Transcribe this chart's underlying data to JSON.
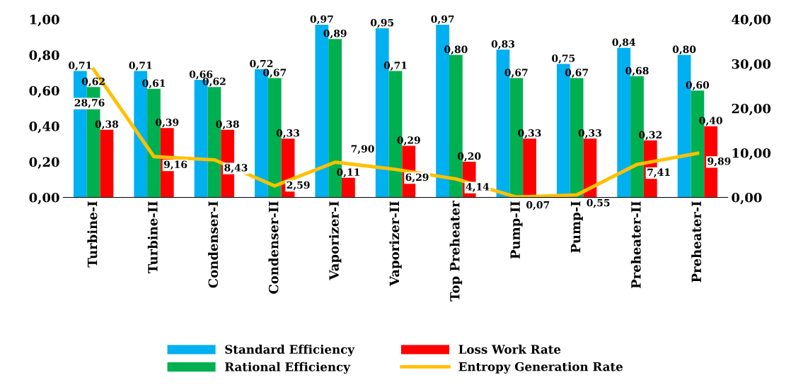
{
  "chart_data": {
    "type": "bar",
    "categories": [
      "Turbine-I",
      "Turbine-II",
      "Condenser-I",
      "Condenser-II",
      "Vaporizer-I",
      "Vaporizer-II",
      "Top Preheater",
      "Pump-II",
      "Pump-I",
      "Preheater-II",
      "Preheater-I"
    ],
    "series": [
      {
        "name": "Standard Efficiency",
        "color": "#00b0f0",
        "values": [
          0.71,
          0.71,
          0.66,
          0.72,
          0.97,
          0.95,
          0.97,
          0.83,
          0.75,
          0.84,
          0.8
        ],
        "value_labels": [
          "0,71",
          "0,71",
          "0,66",
          "0,72",
          "0,97",
          "0,95",
          "0,97",
          "0,83",
          "0,75",
          "0,84",
          "0,80"
        ]
      },
      {
        "name": "Rational Efficiency",
        "color": "#00b050",
        "values": [
          0.62,
          0.61,
          0.62,
          0.67,
          0.89,
          0.71,
          0.8,
          0.67,
          0.67,
          0.68,
          0.6
        ],
        "value_labels": [
          "0,62",
          "0,61",
          "0,62",
          "0,67",
          "0,89",
          "0,71",
          "0,80",
          "0,67",
          "0,67",
          "0,68",
          "0,60"
        ]
      },
      {
        "name": "Loss Work Rate",
        "color": "#ff0000",
        "values": [
          0.38,
          0.39,
          0.38,
          0.33,
          0.11,
          0.29,
          0.2,
          0.33,
          0.33,
          0.32,
          0.4
        ],
        "value_labels": [
          "0,38",
          "0,39",
          "0,38",
          "0,33",
          "0,11",
          "0,29",
          "0,20",
          "0,33",
          "0,33",
          "0,32",
          "0,40"
        ]
      },
      {
        "name": "Entropy Generation Rate",
        "type": "line",
        "axis": "y2",
        "color": "#ffc000",
        "values": [
          28.76,
          9.16,
          8.43,
          2.59,
          7.9,
          6.29,
          4.14,
          0.07,
          0.55,
          7.41,
          9.89
        ],
        "value_labels": [
          "28,76",
          "9,16",
          "8,43",
          "2,59",
          "7,90",
          "6,29",
          "4,14",
          "0,07",
          "0,55",
          "7,41",
          "9,89"
        ]
      }
    ],
    "ylim": [
      0,
      1
    ],
    "yticks": [
      {
        "value": 0,
        "label": "0,00"
      },
      {
        "value": 0.2,
        "label": "0,20"
      },
      {
        "value": 0.4,
        "label": "0,40"
      },
      {
        "value": 0.6,
        "label": "0,60"
      },
      {
        "value": 0.8,
        "label": "0,80"
      },
      {
        "value": 1,
        "label": "1,00"
      }
    ],
    "y2lim": [
      0,
      40
    ],
    "y2ticks": [
      {
        "value": 0,
        "label": "0,00"
      },
      {
        "value": 10,
        "label": "10,00"
      },
      {
        "value": 20,
        "label": "20,00"
      },
      {
        "value": 30,
        "label": "30,00"
      },
      {
        "value": 40,
        "label": "40,00"
      }
    ],
    "grid": false,
    "legend": "bottom",
    "marker": "none",
    "line_style": "solid"
  }
}
